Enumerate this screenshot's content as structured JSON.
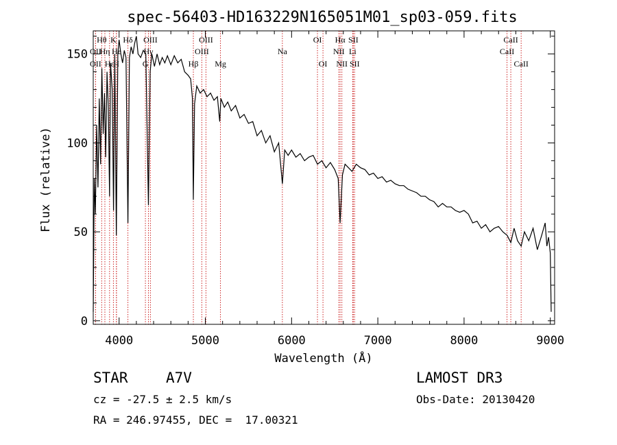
{
  "chart_data": {
    "type": "line",
    "title": "spec-56403-HD163229N165051M01_sp03-059.fits",
    "xlabel": "Wavelength (Å)",
    "ylabel": "Flux (relative)",
    "xlim": [
      3700,
      9050
    ],
    "ylim": [
      -2,
      163
    ],
    "xticks": [
      4000,
      5000,
      6000,
      7000,
      8000,
      9000
    ],
    "yticks": [
      0,
      50,
      100,
      150
    ],
    "grid": false,
    "line_color": "#000000",
    "marker_color": "#cc2222",
    "series": [
      {
        "values": [
          [
            3700,
            5
          ],
          [
            3712,
            80
          ],
          [
            3725,
            60
          ],
          [
            3740,
            110
          ],
          [
            3755,
            75
          ],
          [
            3770,
            125
          ],
          [
            3785,
            88
          ],
          [
            3800,
            142
          ],
          [
            3815,
            105
          ],
          [
            3830,
            128
          ],
          [
            3845,
            92
          ],
          [
            3860,
            140
          ],
          [
            3875,
            120
          ],
          [
            3889,
            70
          ],
          [
            3900,
            145
          ],
          [
            3920,
            130
          ],
          [
            3935,
            62
          ],
          [
            3950,
            150
          ],
          [
            3968,
            48
          ],
          [
            3985,
            150
          ],
          [
            4000,
            158
          ],
          [
            4020,
            150
          ],
          [
            4040,
            145
          ],
          [
            4060,
            152
          ],
          [
            4080,
            148
          ],
          [
            4102,
            55
          ],
          [
            4120,
            148
          ],
          [
            4140,
            154
          ],
          [
            4160,
            150
          ],
          [
            4180,
            156
          ],
          [
            4200,
            160
          ],
          [
            4220,
            150
          ],
          [
            4250,
            148
          ],
          [
            4280,
            152
          ],
          [
            4310,
            150
          ],
          [
            4340,
            65
          ],
          [
            4360,
            140
          ],
          [
            4380,
            150
          ],
          [
            4410,
            143
          ],
          [
            4440,
            150
          ],
          [
            4470,
            144
          ],
          [
            4500,
            148
          ],
          [
            4530,
            145
          ],
          [
            4560,
            149
          ],
          [
            4600,
            144
          ],
          [
            4640,
            149
          ],
          [
            4680,
            145
          ],
          [
            4720,
            147
          ],
          [
            4760,
            140
          ],
          [
            4800,
            138
          ],
          [
            4830,
            136
          ],
          [
            4850,
            125
          ],
          [
            4861,
            68
          ],
          [
            4875,
            122
          ],
          [
            4900,
            132
          ],
          [
            4940,
            128
          ],
          [
            4980,
            130
          ],
          [
            5020,
            126
          ],
          [
            5060,
            128
          ],
          [
            5100,
            124
          ],
          [
            5140,
            126
          ],
          [
            5167,
            112
          ],
          [
            5180,
            125
          ],
          [
            5220,
            120
          ],
          [
            5260,
            123
          ],
          [
            5300,
            118
          ],
          [
            5350,
            121
          ],
          [
            5400,
            114
          ],
          [
            5450,
            116
          ],
          [
            5500,
            111
          ],
          [
            5550,
            112
          ],
          [
            5600,
            104
          ],
          [
            5650,
            107
          ],
          [
            5700,
            100
          ],
          [
            5750,
            104
          ],
          [
            5800,
            95
          ],
          [
            5850,
            100
          ],
          [
            5893,
            77
          ],
          [
            5920,
            96
          ],
          [
            5960,
            93
          ],
          [
            6000,
            96
          ],
          [
            6050,
            92
          ],
          [
            6100,
            94
          ],
          [
            6150,
            90
          ],
          [
            6200,
            92
          ],
          [
            6250,
            93
          ],
          [
            6300,
            88
          ],
          [
            6350,
            90
          ],
          [
            6400,
            86
          ],
          [
            6450,
            89
          ],
          [
            6500,
            85
          ],
          [
            6540,
            80
          ],
          [
            6563,
            55
          ],
          [
            6590,
            82
          ],
          [
            6620,
            88
          ],
          [
            6660,
            86
          ],
          [
            6700,
            84
          ],
          [
            6750,
            88
          ],
          [
            6800,
            86
          ],
          [
            6850,
            85
          ],
          [
            6900,
            82
          ],
          [
            6950,
            83
          ],
          [
            7000,
            80
          ],
          [
            7050,
            81
          ],
          [
            7100,
            78
          ],
          [
            7150,
            79
          ],
          [
            7200,
            77
          ],
          [
            7250,
            76
          ],
          [
            7300,
            76
          ],
          [
            7350,
            74
          ],
          [
            7400,
            73
          ],
          [
            7450,
            72
          ],
          [
            7500,
            70
          ],
          [
            7550,
            70
          ],
          [
            7600,
            68
          ],
          [
            7650,
            67
          ],
          [
            7700,
            64
          ],
          [
            7750,
            66
          ],
          [
            7800,
            64
          ],
          [
            7850,
            64
          ],
          [
            7900,
            62
          ],
          [
            7950,
            61
          ],
          [
            8000,
            62
          ],
          [
            8050,
            60
          ],
          [
            8100,
            55
          ],
          [
            8150,
            56
          ],
          [
            8200,
            52
          ],
          [
            8250,
            54
          ],
          [
            8300,
            50
          ],
          [
            8350,
            52
          ],
          [
            8400,
            53
          ],
          [
            8450,
            50
          ],
          [
            8500,
            48
          ],
          [
            8542,
            44
          ],
          [
            8580,
            52
          ],
          [
            8620,
            45
          ],
          [
            8662,
            42
          ],
          [
            8700,
            50
          ],
          [
            8750,
            45
          ],
          [
            8800,
            52
          ],
          [
            8850,
            40
          ],
          [
            8900,
            48
          ],
          [
            8940,
            55
          ],
          [
            8960,
            42
          ],
          [
            8980,
            47
          ],
          [
            9000,
            38
          ],
          [
            9010,
            5
          ]
        ]
      }
    ],
    "lines": [
      {
        "label": "Hθ",
        "x": 3798,
        "row": 1
      },
      {
        "label": "OII",
        "x": 3727,
        "row": 2
      },
      {
        "label": "Hη",
        "x": 3835,
        "row": 2
      },
      {
        "label": "OII",
        "x": 3727,
        "row": 3
      },
      {
        "label": "Hε",
        "x": 3889,
        "row": 3
      },
      {
        "label": "K",
        "x": 3934,
        "row": 1
      },
      {
        "label": "He",
        "x": 3970,
        "row": 2
      },
      {
        "label": "H",
        "x": 3968,
        "row": 3
      },
      {
        "label": "Hδ",
        "x": 4102,
        "row": 1
      },
      {
        "label": "OIII",
        "x": 4363,
        "row": 1
      },
      {
        "label": "Hγ",
        "x": 4340,
        "row": 2
      },
      {
        "label": "G",
        "x": 4305,
        "row": 3
      },
      {
        "label": "OIII",
        "x": 5007,
        "row": 1
      },
      {
        "label": "OIII",
        "x": 4959,
        "row": 2
      },
      {
        "label": "Hβ",
        "x": 4861,
        "row": 3
      },
      {
        "label": "Mg",
        "x": 5175,
        "row": 3
      },
      {
        "label": "Na",
        "x": 5893,
        "row": 2
      },
      {
        "label": "OI",
        "x": 6300,
        "row": 1
      },
      {
        "label": "OI",
        "x": 6364,
        "row": 3
      },
      {
        "label": "Hα",
        "x": 6563,
        "row": 1
      },
      {
        "label": "NII",
        "x": 6548,
        "row": 2
      },
      {
        "label": "NII",
        "x": 6583,
        "row": 3
      },
      {
        "label": "SII",
        "x": 6716,
        "row": 1
      },
      {
        "label": "Li",
        "x": 6708,
        "row": 2
      },
      {
        "label": "SII",
        "x": 6731,
        "row": 3
      },
      {
        "label": "CaII",
        "x": 8542,
        "row": 1
      },
      {
        "label": "CaII",
        "x": 8498,
        "row": 2
      },
      {
        "label": "CaII",
        "x": 8662,
        "row": 3
      }
    ]
  },
  "info": {
    "class": "STAR",
    "subclass": "A7V",
    "survey": "LAMOST DR3",
    "cz": "cz = -27.5 ± 2.5 km/s",
    "obsdate": "Obs-Date: 20130420",
    "coords": "RA = 246.97455, DEC =  17.00321"
  }
}
